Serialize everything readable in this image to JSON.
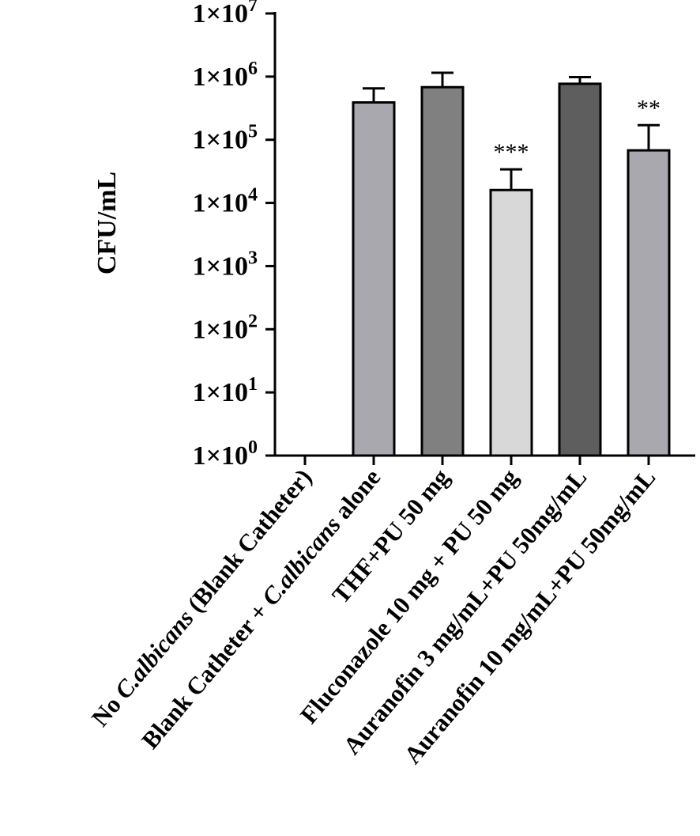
{
  "chart_data": {
    "type": "bar",
    "title": "",
    "xlabel": "",
    "ylabel": "CFU/mL",
    "yscale": "log",
    "ylim": [
      1,
      10000000
    ],
    "y_ticks": [
      {
        "value": 1,
        "mantissa": "1×10",
        "exp": "0"
      },
      {
        "value": 10,
        "mantissa": "1×10",
        "exp": "1"
      },
      {
        "value": 100,
        "mantissa": "1×10",
        "exp": "2"
      },
      {
        "value": 1000,
        "mantissa": "1×10",
        "exp": "3"
      },
      {
        "value": 10000,
        "mantissa": "1×10",
        "exp": "4"
      },
      {
        "value": 100000,
        "mantissa": "1×10",
        "exp": "5"
      },
      {
        "value": 1000000,
        "mantissa": "1×10",
        "exp": "6"
      },
      {
        "value": 10000000,
        "mantissa": "1×10",
        "exp": "7"
      }
    ],
    "categories": [
      {
        "parts": [
          {
            "t": "No ",
            "i": false
          },
          {
            "t": "C.albicans",
            "i": true
          },
          {
            "t": " (Blank Catheter)",
            "i": false
          }
        ]
      },
      {
        "parts": [
          {
            "t": "Blank Catheter + ",
            "i": false
          },
          {
            "t": "C.albicans",
            "i": true
          },
          {
            "t": " alone",
            "i": false
          }
        ]
      },
      {
        "parts": [
          {
            "t": "THF+PU 50 mg",
            "i": false
          }
        ]
      },
      {
        "parts": [
          {
            "t": "Fluconazole 10 mg + PU 50 mg",
            "i": false
          }
        ]
      },
      {
        "parts": [
          {
            "t": "Auranofin 3 mg/mL+PU 50mg/mL",
            "i": false
          }
        ]
      },
      {
        "parts": [
          {
            "t": "Auranofin 10 mg/mL+PU 50mg/mL",
            "i": false
          }
        ]
      }
    ],
    "values": [
      0,
      390000,
      680000,
      16000,
      770000,
      68000
    ],
    "error_upper": [
      null,
      650000,
      1150000,
      34000,
      980000,
      170000
    ],
    "bar_colors": [
      "#ffffff",
      "#a8a8ae",
      "#808080",
      "#d8d8d8",
      "#5e5e5e",
      "#a8a8ae"
    ],
    "significance": [
      "",
      "",
      "",
      "***",
      "",
      "**"
    ],
    "grid": false,
    "legend": "none"
  }
}
